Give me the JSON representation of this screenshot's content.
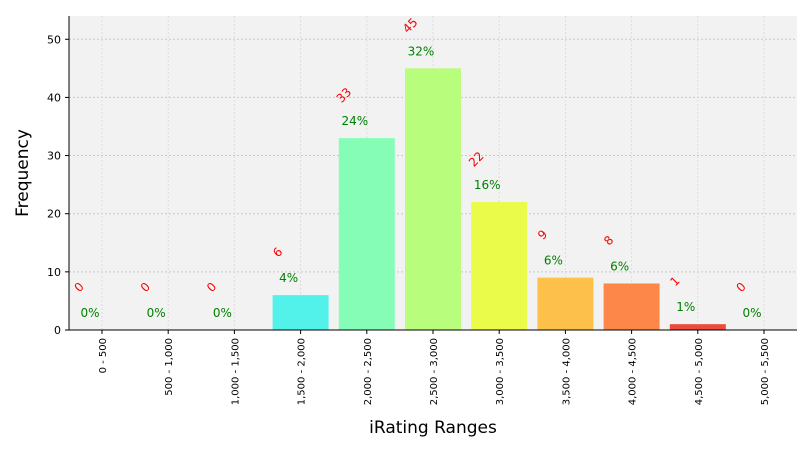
{
  "chart_data": {
    "type": "bar",
    "xlabel": "iRating Ranges",
    "ylabel": "Frequency",
    "ylim": [
      0,
      54
    ],
    "yticks": [
      0,
      10,
      20,
      30,
      40,
      50
    ],
    "grid": true,
    "categories": [
      "0 - 500",
      "500 - 1,000",
      "1,000 - 1,500",
      "1,500 - 2,000",
      "2,000 - 2,500",
      "2,500 - 3,000",
      "3,000 - 3,500",
      "3,500 - 4,000",
      "4,000 - 4,500",
      "4,500 - 5,000",
      "5,000 - 5,500"
    ],
    "values": [
      0,
      0,
      0,
      6,
      33,
      45,
      22,
      9,
      8,
      1,
      0
    ],
    "count_labels": [
      "0",
      "0",
      "0",
      "6",
      "33",
      "45",
      "22",
      "9",
      "8",
      "1",
      "0"
    ],
    "percent_labels": [
      "0%",
      "0%",
      "0%",
      "4%",
      "24%",
      "32%",
      "16%",
      "6%",
      "6%",
      "1%",
      "0%"
    ],
    "bar_colors": [
      "#3a4fd6",
      "#2f8cf0",
      "#21c2e8",
      "#52f2ea",
      "#86fdb7",
      "#b8fd7c",
      "#ebfb4a",
      "#fdc04b",
      "#fd8748",
      "#ee4a3b",
      "#b81c1c"
    ],
    "count_label_color": "#ff0000",
    "percent_label_color": "#008000",
    "plot_background": "#f2f2f2"
  }
}
